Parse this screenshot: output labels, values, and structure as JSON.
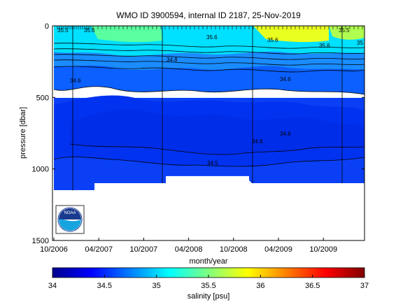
{
  "chart_data": {
    "type": "heatmap",
    "title": "WMO ID 3900594, internal ID 2187, 25-Nov-2019",
    "xlabel": "month/year",
    "ylabel": "pressure [dbar]",
    "x_ticks": [
      "10/2006",
      "04/2007",
      "10/2007",
      "04/2008",
      "10/2008",
      "04/2009",
      "10/2009"
    ],
    "y_ticks": [
      "0",
      "500",
      "1000",
      "1500"
    ],
    "ylim": [
      0,
      1500
    ],
    "y_reversed": true,
    "colorbar": {
      "label": "salinity [psu]",
      "ticks": [
        "34",
        "34.5",
        "35",
        "35.5",
        "36",
        "36.5",
        "37"
      ],
      "range": [
        34,
        37
      ],
      "colormap": "jet"
    },
    "contour_labels": [
      {
        "text": "35.5",
        "value": 35.5
      },
      {
        "text": "35.6",
        "value": 35.6
      },
      {
        "text": "34.8",
        "value": 34.8
      },
      {
        "text": "34.6",
        "value": 34.6
      },
      {
        "text": "34.5",
        "value": 34.5
      },
      {
        "text": "35",
        "value": 35
      }
    ],
    "profile_depth_dbar": [
      1150,
      1100,
      1050,
      1100
    ],
    "grid": false
  },
  "logo": {
    "text": "NOAA"
  }
}
